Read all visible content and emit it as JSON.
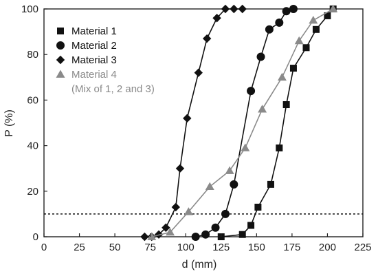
{
  "chart_data": {
    "type": "scatter",
    "xlabel": "d (mm)",
    "ylabel": "P (%)",
    "xlim": [
      0,
      225
    ],
    "ylim": [
      0,
      100
    ],
    "xticks": [
      0,
      25,
      50,
      75,
      100,
      125,
      150,
      175,
      200,
      225
    ],
    "yticks": [
      0,
      20,
      40,
      60,
      80,
      100
    ],
    "grid": false,
    "legend_position": "top-left",
    "reference_line": {
      "y": 10,
      "style": "dotted"
    },
    "legend_extra": "(Mix of 1, 2 and 3)",
    "series": [
      {
        "name": "Material 1",
        "marker": "square",
        "color": "#111111",
        "x": [
          125,
          140,
          146,
          151,
          160,
          166,
          171,
          176,
          185,
          192,
          200,
          204
        ],
        "y": [
          0,
          1,
          5,
          13,
          23,
          39,
          58,
          74,
          83,
          91,
          97,
          100
        ]
      },
      {
        "name": "Material 2",
        "marker": "circle",
        "color": "#111111",
        "x": [
          107,
          114,
          121,
          128,
          134,
          146,
          153,
          159,
          166,
          171,
          176
        ],
        "y": [
          0,
          1,
          4,
          10,
          23,
          64,
          79,
          91,
          94,
          99,
          100
        ]
      },
      {
        "name": "Material 3",
        "marker": "diamond",
        "color": "#111111",
        "x": [
          71,
          76,
          81,
          86,
          93,
          96,
          101,
          109,
          115,
          122,
          128,
          134,
          140
        ],
        "y": [
          0,
          0,
          1,
          4,
          13,
          30,
          52,
          72,
          87,
          96,
          100,
          100,
          100
        ]
      },
      {
        "name": "Material 4",
        "marker": "triangle",
        "color": "#8a8a8a",
        "x": [
          76,
          89,
          102,
          117,
          131,
          142,
          154,
          168,
          180,
          190,
          204
        ],
        "y": [
          0,
          2,
          11,
          22,
          29,
          39,
          56,
          70,
          86,
          95,
          100
        ]
      }
    ]
  }
}
